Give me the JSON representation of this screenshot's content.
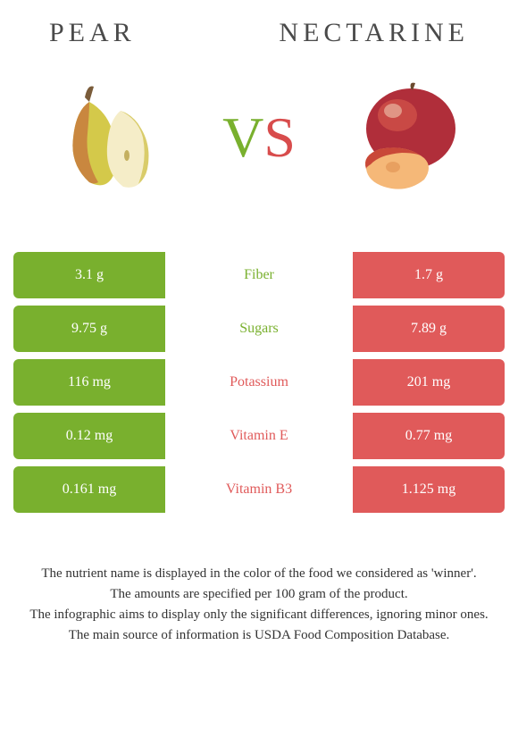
{
  "left_food": {
    "name": "Pear",
    "color": "#79b02e"
  },
  "right_food": {
    "name": "Nectarine",
    "color": "#e05a5a"
  },
  "vs_label": {
    "v": "V",
    "s": "S"
  },
  "rows": [
    {
      "label": "Fiber",
      "left": "3.1 g",
      "right": "1.7 g",
      "winner": "left"
    },
    {
      "label": "Sugars",
      "left": "9.75 g",
      "right": "7.89 g",
      "winner": "left"
    },
    {
      "label": "Potassium",
      "left": "116 mg",
      "right": "201 mg",
      "winner": "right"
    },
    {
      "label": "Vitamin E",
      "left": "0.12 mg",
      "right": "0.77 mg",
      "winner": "right"
    },
    {
      "label": "Vitamin B3",
      "left": "0.161 mg",
      "right": "1.125 mg",
      "winner": "right"
    }
  ],
  "footnotes": [
    "The nutrient name is displayed in the color of the food we considered as 'winner'.",
    "The amounts are specified per 100 gram of the product.",
    "The infographic aims to display only the significant differences, ignoring minor ones.",
    "The main source of information is USDA Food Composition Database."
  ]
}
